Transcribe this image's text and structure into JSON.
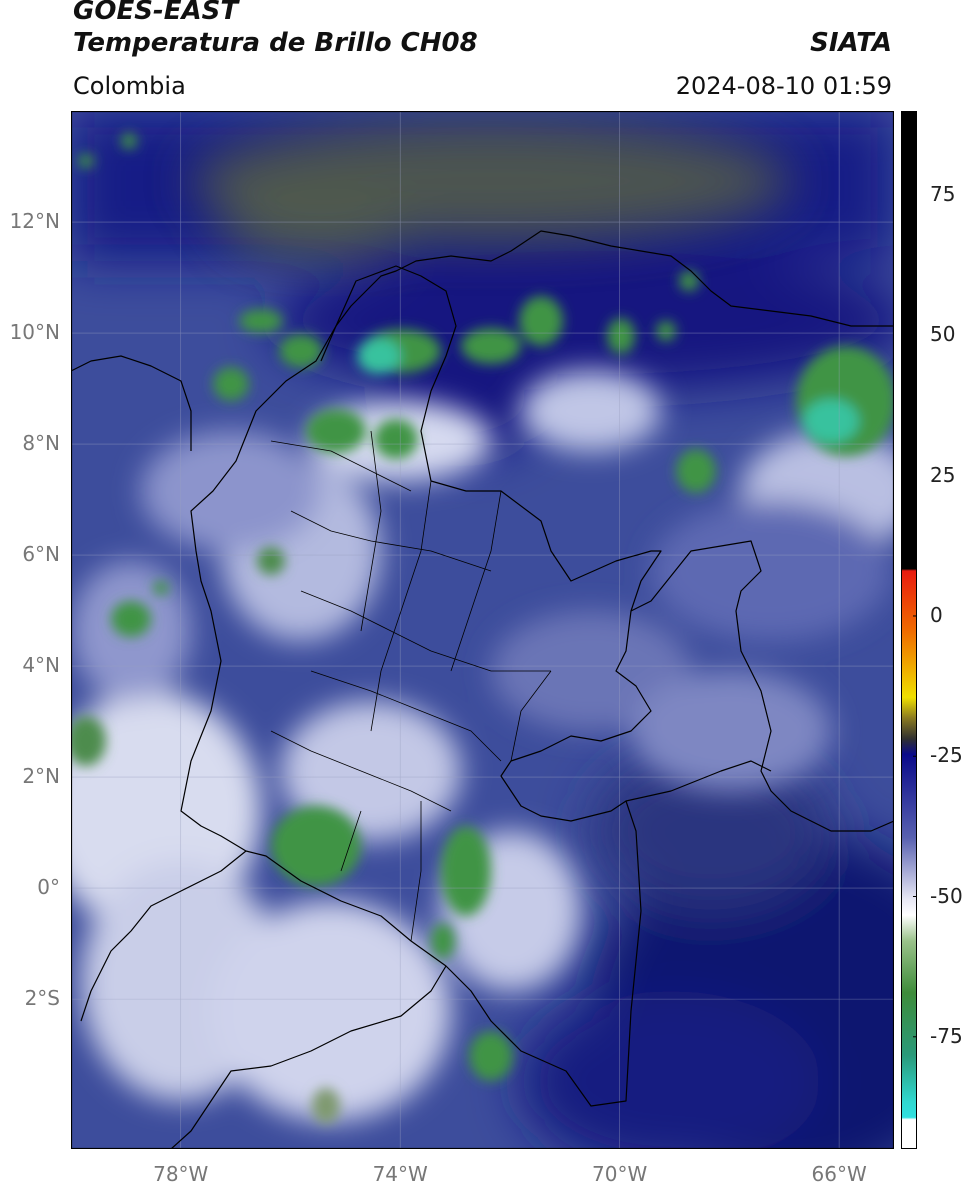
{
  "header": {
    "satellite": "GOES-EAST",
    "product": "Temperatura de Brillo CH08",
    "brand": "SIATA",
    "region": "Colombia",
    "timestamp": "2024-08-10 01:59"
  },
  "map": {
    "lat_range": [
      -4.7,
      14.0
    ],
    "lon_range": [
      -80.0,
      -65.0
    ],
    "lat_ticks": [
      {
        "value": 12,
        "label": "12°N"
      },
      {
        "value": 10,
        "label": "10°N"
      },
      {
        "value": 8,
        "label": "8°N"
      },
      {
        "value": 6,
        "label": "6°N"
      },
      {
        "value": 4,
        "label": "4°N"
      },
      {
        "value": 2,
        "label": "2°N"
      },
      {
        "value": 0,
        "label": "0°"
      },
      {
        "value": -2,
        "label": "2°S"
      }
    ],
    "lon_ticks": [
      {
        "value": -78,
        "label": "78°W"
      },
      {
        "value": -74,
        "label": "74°W"
      },
      {
        "value": -70,
        "label": "70°W"
      },
      {
        "value": -66,
        "label": "66°W"
      }
    ],
    "colors": {
      "background": "#3c4c9c",
      "deep_blue": "#10127a",
      "white": "#eceef8",
      "green": "#3c8f3c",
      "teal": "#35c4a0",
      "olive": "#5a6a40"
    }
  },
  "colorbar": {
    "range": [
      -95,
      90
    ],
    "ticks": [
      {
        "value": 75,
        "label": "75"
      },
      {
        "value": 50,
        "label": "50"
      },
      {
        "value": 25,
        "label": "25"
      },
      {
        "value": 0,
        "label": "0"
      },
      {
        "value": -25,
        "label": "-25"
      },
      {
        "value": -50,
        "label": "-50"
      },
      {
        "value": -75,
        "label": "-75"
      }
    ]
  }
}
